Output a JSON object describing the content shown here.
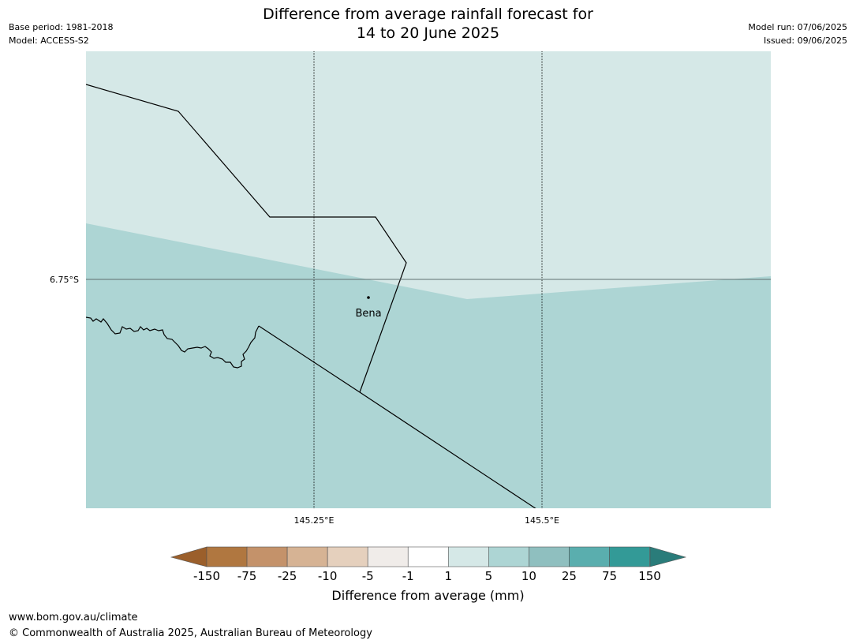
{
  "header": {
    "title_line1": "Difference from average rainfall forecast for",
    "title_line2": "14 to 20 June 2025",
    "base_period": "Base period: 1981-2018",
    "model": "Model: ACCESS-S2",
    "model_run": "Model run: 07/06/2025",
    "issued": "Issued: 09/06/2025"
  },
  "map": {
    "lat_label": "6.75°S",
    "lon_labels": [
      "145.25°E",
      "145.5°E"
    ],
    "place_label": "Bena",
    "colors": {
      "region_1_to_5": "#d5e8e7",
      "region_5_to_10": "#add5d4",
      "boundary": "#000000",
      "gridline": "#000000"
    }
  },
  "colorbar": {
    "title": "Difference from average (mm)",
    "ticks": [
      "-150",
      "-75",
      "-25",
      "-10",
      "-5",
      "-1",
      "1",
      "5",
      "10",
      "25",
      "75",
      "150"
    ],
    "colors": [
      "#9b5f2b",
      "#b07740",
      "#c4926a",
      "#d6b394",
      "#e5d0bd",
      "#f0ece9",
      "#ffffff",
      "#d5e8e7",
      "#add5d4",
      "#8fbfbf",
      "#5aaeae",
      "#339a97",
      "#2a7c7a"
    ]
  },
  "footer": {
    "url": "www.bom.gov.au/climate",
    "copyright": "© Commonwealth of Australia 2025, Australian Bureau of Meteorology"
  }
}
